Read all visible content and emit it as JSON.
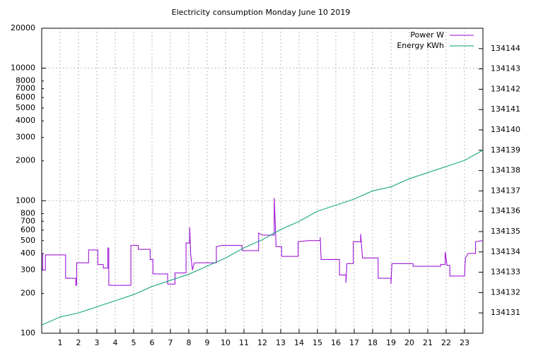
{
  "chart_data": {
    "type": "line",
    "title": "Electricity consumption Monday June 10 2019",
    "xlim": [
      0,
      24
    ],
    "xticks": [
      1,
      2,
      3,
      4,
      5,
      6,
      7,
      8,
      9,
      10,
      11,
      12,
      13,
      14,
      15,
      16,
      17,
      18,
      19,
      20,
      21,
      22,
      23
    ],
    "ylim": [
      100,
      20000
    ],
    "ylog": true,
    "yticks": [
      100,
      200,
      300,
      400,
      500,
      600,
      700,
      800,
      1000,
      2000,
      3000,
      4000,
      5000,
      6000,
      7000,
      8000,
      10000,
      20000
    ],
    "y2lim": [
      134130,
      134145
    ],
    "y2ticks": [
      134131,
      134132,
      134133,
      134134,
      134135,
      134136,
      134137,
      134138,
      134139,
      134140,
      134141,
      134142,
      134143,
      134144
    ],
    "grid": true,
    "legend": "top-right",
    "series": [
      {
        "name": "Power W",
        "color": "#9400d3",
        "x": [
          0,
          0.05,
          0.05,
          0.2,
          0.2,
          1.3,
          1.3,
          1.85,
          1.85,
          1.9,
          1.9,
          2.55,
          2.55,
          3.05,
          3.05,
          3.35,
          3.35,
          3.6,
          3.6,
          3.65,
          3.65,
          4.85,
          4.85,
          5.25,
          5.25,
          5.9,
          5.9,
          6.05,
          6.05,
          6.85,
          6.85,
          7.25,
          7.25,
          7.85,
          7.85,
          8.05,
          8.05,
          8.1,
          8.2,
          8.3,
          9.5,
          9.5,
          9.8,
          10.9,
          10.9,
          11.8,
          11.8,
          12.0,
          12.65,
          12.65,
          12.75,
          13.05,
          13.05,
          13.95,
          13.95,
          14.5,
          15.15,
          15.15,
          15.2,
          16.2,
          16.2,
          16.55,
          16.55,
          16.6,
          16.95,
          16.95,
          17.35,
          17.35,
          17.45,
          18.3,
          18.3,
          19.0,
          19.0,
          19.05,
          20.2,
          20.2,
          21.7,
          21.7,
          21.95,
          21.95,
          22.05,
          22.2,
          22.2,
          23.0,
          23.05,
          23.2,
          23.6,
          23.6,
          24
        ],
        "values": [
          400,
          400,
          300,
          300,
          390,
          390,
          260,
          260,
          230,
          230,
          340,
          340,
          425,
          425,
          330,
          330,
          310,
          310,
          440,
          440,
          230,
          230,
          460,
          460,
          430,
          430,
          360,
          360,
          280,
          280,
          235,
          235,
          285,
          285,
          480,
          480,
          630,
          400,
          300,
          340,
          340,
          450,
          460,
          460,
          420,
          420,
          570,
          550,
          550,
          1050,
          450,
          450,
          380,
          380,
          490,
          500,
          500,
          530,
          360,
          360,
          275,
          275,
          240,
          335,
          335,
          490,
          490,
          560,
          370,
          370,
          260,
          260,
          235,
          335,
          335,
          320,
          320,
          330,
          330,
          410,
          325,
          325,
          270,
          270,
          370,
          400,
          400,
          490,
          500
        ]
      },
      {
        "name": "Energy KWh",
        "color": "#009e73",
        "axis": "y2",
        "x": [
          0,
          1,
          2,
          3,
          4,
          5,
          6,
          7,
          8,
          9,
          10,
          11,
          12,
          13,
          14,
          15,
          16,
          17,
          18,
          19,
          20,
          21,
          22,
          23,
          24
        ],
        "values": [
          134130.4,
          134130.8,
          134131.0,
          134131.3,
          134131.6,
          134131.9,
          134132.3,
          134132.6,
          134132.9,
          134133.3,
          134133.7,
          134134.2,
          134134.6,
          134135.1,
          134135.5,
          134136.0,
          134136.3,
          134136.6,
          134137.0,
          134137.2,
          134137.6,
          134137.9,
          134138.2,
          134138.5,
          134139.0
        ]
      }
    ]
  }
}
